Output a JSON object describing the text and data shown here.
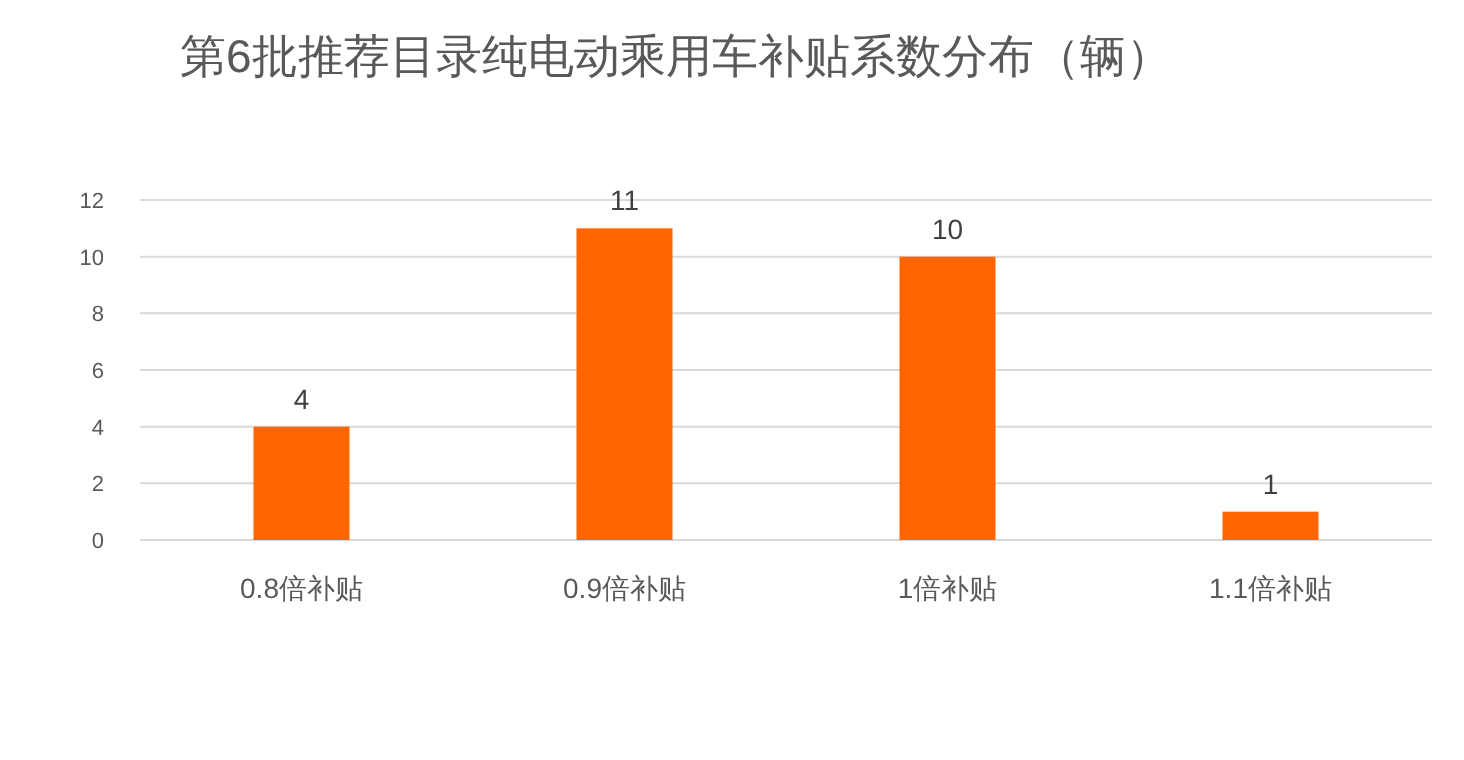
{
  "chart_data": {
    "type": "bar",
    "title": "第6批推荐目录纯电动乘用车补贴系数分布（辆）",
    "categories": [
      "0.8倍补贴",
      "0.9倍补贴",
      "1倍补贴",
      "1.1倍补贴"
    ],
    "values": [
      4,
      11,
      10,
      1
    ],
    "color": "#ff6600",
    "ylim": [
      0,
      12
    ],
    "yticks": [
      0,
      2,
      4,
      6,
      8,
      10,
      12
    ],
    "grid": "y",
    "data_labels": true
  }
}
